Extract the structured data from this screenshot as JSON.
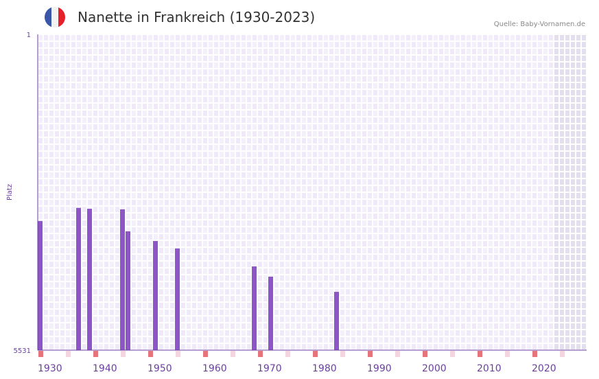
{
  "header": {
    "title": "Nanette in Frankreich (1930-2023)",
    "source": "Quelle: Baby-Vornamen.de"
  },
  "colors": {
    "bar": "#8e55c8",
    "axis": "#6a3fa0",
    "marker_decade": "#e5747c",
    "marker_half": "#f4d6e0",
    "grid_bg": "#efe9f9",
    "future_bg": "#e4dfee"
  },
  "chart_data": {
    "type": "bar",
    "title": "Nanette in Frankreich (1930-2023)",
    "xlabel": "",
    "ylabel": "Platz",
    "xlim": [
      1930,
      2030
    ],
    "ylim": [
      1,
      5531
    ],
    "y_inverted": true,
    "y_ticks": [
      "1",
      "5531"
    ],
    "x_ticks": [
      1930,
      1940,
      1950,
      1960,
      1970,
      1980,
      1990,
      2000,
      2010,
      2020
    ],
    "x_tick_labels": [
      "1930",
      "1940",
      "1950",
      "1960",
      "1970",
      "1980",
      "1990",
      "2000",
      "2010",
      "2020"
    ],
    "future_from": 2024,
    "years": [
      1930,
      1937,
      1939,
      1945,
      1946,
      1951,
      1955,
      1969,
      1972,
      1984
    ],
    "values": [
      3270,
      3040,
      3055,
      3065,
      3450,
      3620,
      3750,
      4065,
      4245,
      4510
    ]
  }
}
